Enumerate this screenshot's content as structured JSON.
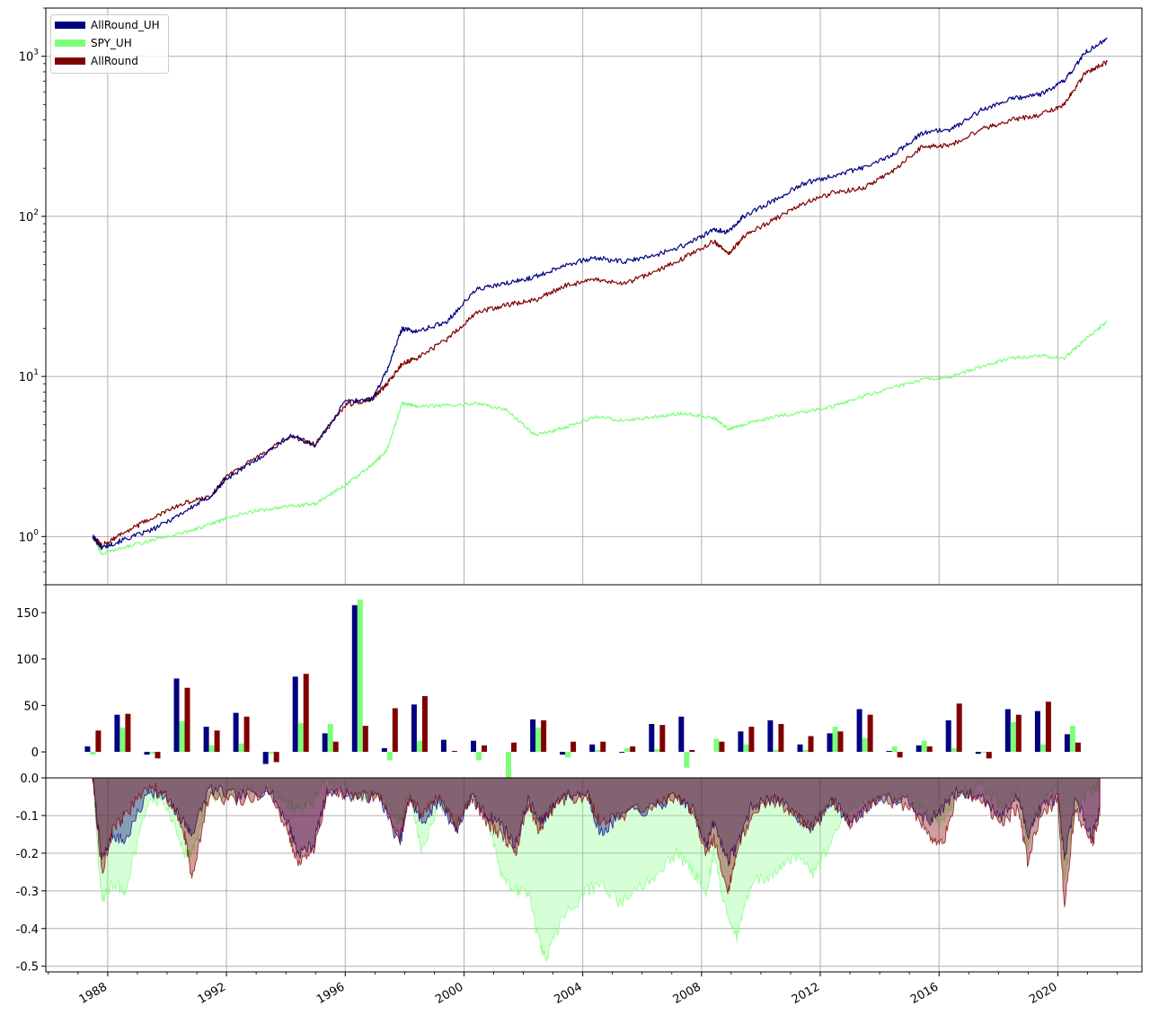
{
  "legend": {
    "items": [
      {
        "label": "AllRound_UH",
        "color": "#000080"
      },
      {
        "label": "SPY_UH",
        "color": "#7cff79"
      },
      {
        "label": "AllRound",
        "color": "#800000"
      }
    ]
  },
  "chart_data": [
    {
      "type": "line",
      "yscale": "log",
      "ylim": [
        0.5,
        2000
      ],
      "xlim": [
        "1985-12-01",
        "2022-11-01"
      ],
      "ytick_labels": [
        "10^0",
        "10^1",
        "10^2",
        "10^3"
      ],
      "x": [
        "1987-07-01",
        "1987-10-20",
        "1988-07-01",
        "1989-07-01",
        "1990-07-01",
        "1991-07-01",
        "1992-01-01",
        "1993-01-01",
        "1994-03-01",
        "1995-01-01",
        "1996-01-01",
        "1996-12-01",
        "1997-06-01",
        "1997-12-01",
        "1998-06-01",
        "1999-06-01",
        "2000-06-01",
        "2001-06-01",
        "2002-06-01",
        "2003-06-01",
        "2004-06-01",
        "2005-06-01",
        "2006-06-01",
        "2007-06-01",
        "2008-06-01",
        "2008-12-01",
        "2009-06-01",
        "2010-06-01",
        "2011-06-01",
        "2012-06-01",
        "2013-06-01",
        "2014-06-01",
        "2015-06-01",
        "2016-06-01",
        "2017-06-01",
        "2018-06-01",
        "2019-06-01",
        "2020-03-20",
        "2020-12-01",
        "2021-09-01"
      ],
      "series": [
        {
          "name": "AllRound_UH",
          "color": "#000080",
          "values": [
            1.0,
            0.85,
            0.95,
            1.1,
            1.4,
            1.8,
            2.3,
            3.0,
            4.3,
            3.7,
            7.0,
            7.2,
            11,
            20,
            19,
            22,
            35,
            38,
            42,
            50,
            55,
            52,
            57,
            66,
            82,
            80,
            100,
            125,
            160,
            180,
            200,
            240,
            330,
            350,
            460,
            540,
            580,
            700,
            1050,
            1300
          ]
        },
        {
          "name": "SPY_UH",
          "color": "#7cff79",
          "values": [
            1.0,
            0.78,
            0.85,
            0.95,
            1.05,
            1.2,
            1.3,
            1.45,
            1.55,
            1.6,
            2.1,
            2.8,
            3.5,
            6.8,
            6.5,
            6.6,
            6.8,
            6.2,
            4.3,
            4.8,
            5.6,
            5.3,
            5.6,
            5.9,
            5.5,
            4.7,
            5.0,
            5.6,
            6.0,
            6.5,
            7.5,
            8.5,
            9.5,
            10.0,
            11.5,
            13.0,
            13.5,
            13.0,
            17,
            22
          ]
        },
        {
          "name": "AllRound",
          "color": "#800000",
          "values": [
            1.0,
            0.88,
            1.05,
            1.3,
            1.6,
            1.8,
            2.4,
            3.1,
            4.2,
            3.8,
            6.6,
            7.3,
            9.0,
            12,
            13,
            17,
            25,
            28,
            30,
            37,
            40,
            38,
            45,
            55,
            70,
            58,
            75,
            95,
            120,
            140,
            150,
            190,
            270,
            280,
            350,
            400,
            430,
            500,
            780,
            920
          ]
        }
      ]
    },
    {
      "type": "bar",
      "ylim": [
        -28,
        180
      ],
      "yticks": [
        0,
        50,
        100,
        150
      ],
      "categories": [
        "1987",
        "1988",
        "1989",
        "1990",
        "1991",
        "1992",
        "1993",
        "1994",
        "1995",
        "1996",
        "1997",
        "1998",
        "1999",
        "2000",
        "2001",
        "2002",
        "2003",
        "2004",
        "2005",
        "2006",
        "2007",
        "2008",
        "2009",
        "2010",
        "2011",
        "2012",
        "2013",
        "2014",
        "2015",
        "2016",
        "2017",
        "2018",
        "2019",
        "2020",
        "2021",
        "2022"
      ],
      "series": [
        {
          "name": "AllRound_UH",
          "color": "#000080",
          "values": [
            6,
            40,
            -3,
            79,
            27,
            42,
            -13,
            81,
            20,
            158,
            4,
            51,
            13,
            12,
            0,
            35,
            -3,
            8,
            -1,
            30,
            38,
            0,
            22,
            34,
            8,
            20,
            46,
            1,
            7,
            34,
            -2,
            46,
            44,
            19,
            0,
            0
          ]
        },
        {
          "name": "SPY_UH",
          "color": "#7cff79",
          "values": [
            -3,
            26,
            -2,
            33,
            7,
            9,
            -2,
            31,
            30,
            164,
            -9,
            12,
            0,
            -9,
            -31,
            26,
            -6,
            2,
            4,
            3,
            -17,
            14,
            8,
            2,
            2,
            27,
            15,
            6,
            12,
            4,
            -1,
            32,
            8,
            28,
            0,
            0
          ]
        },
        {
          "name": "AllRound",
          "color": "#800000",
          "values": [
            23,
            41,
            -7,
            69,
            23,
            38,
            -11,
            84,
            11,
            28,
            47,
            60,
            1,
            7,
            10,
            34,
            11,
            11,
            6,
            29,
            2,
            11,
            27,
            30,
            17,
            22,
            40,
            -6,
            6,
            52,
            -7,
            40,
            54,
            10,
            0,
            0
          ]
        }
      ]
    },
    {
      "type": "area",
      "ylim": [
        -0.515,
        0.0
      ],
      "ytick_labels": [
        "0.0",
        "-0.1",
        "-0.2",
        "-0.3",
        "-0.4",
        "-0.5"
      ],
      "x": [
        "1987-07-01",
        "1987-10-20",
        "1988-03-01",
        "1988-08-01",
        "1989-06-01",
        "1990-01-01",
        "1990-08-01",
        "1990-11-01",
        "1991-06-01",
        "1992-06-01",
        "1993-06-01",
        "1994-02-01",
        "1994-06-01",
        "1994-12-01",
        "1995-06-01",
        "1996-06-01",
        "1997-03-01",
        "1997-11-01",
        "1998-03-01",
        "1998-08-01",
        "1999-03-01",
        "1999-10-01",
        "2000-04-01",
        "2000-10-01",
        "2001-04-01",
        "2001-09-20",
        "2002-03-01",
        "2002-07-20",
        "2002-10-09",
        "2003-04-01",
        "2004-03-01",
        "2004-08-01",
        "2005-04-01",
        "2006-06-01",
        "2007-03-01",
        "2007-10-01",
        "2008-03-01",
        "2008-06-01",
        "2008-11-20",
        "2009-03-09",
        "2009-09-01",
        "2010-06-01",
        "2011-03-01",
        "2011-10-01",
        "2012-06-01",
        "2013-01-01",
        "2014-01-01",
        "2015-01-01",
        "2015-08-25",
        "2016-02-11",
        "2016-08-01",
        "2017-06-01",
        "2018-02-09",
        "2018-09-01",
        "2018-12-24",
        "2019-06-01",
        "2020-01-01",
        "2020-03-23",
        "2020-08-01",
        "2021-03-01",
        "2021-06-01"
      ],
      "series": [
        {
          "name": "AllRound_UH",
          "color": "#000080",
          "values": [
            0,
            -0.22,
            -0.15,
            -0.17,
            -0.03,
            -0.06,
            -0.12,
            -0.15,
            -0.03,
            -0.05,
            -0.03,
            -0.12,
            -0.2,
            -0.18,
            -0.03,
            -0.05,
            -0.05,
            -0.18,
            -0.05,
            -0.12,
            -0.06,
            -0.14,
            -0.05,
            -0.1,
            -0.12,
            -0.18,
            -0.06,
            -0.12,
            -0.1,
            -0.05,
            -0.04,
            -0.15,
            -0.1,
            -0.08,
            -0.05,
            -0.09,
            -0.18,
            -0.12,
            -0.22,
            -0.18,
            -0.08,
            -0.05,
            -0.1,
            -0.13,
            -0.06,
            -0.12,
            -0.05,
            -0.06,
            -0.12,
            -0.08,
            -0.04,
            -0.05,
            -0.1,
            -0.05,
            -0.15,
            -0.08,
            -0.05,
            -0.22,
            -0.06,
            -0.15,
            -0.08
          ]
        },
        {
          "name": "SPY_UH",
          "color": "#7cff79",
          "values": [
            0,
            -0.33,
            -0.28,
            -0.3,
            -0.05,
            -0.08,
            -0.2,
            -0.2,
            -0.05,
            -0.04,
            -0.02,
            -0.07,
            -0.08,
            -0.06,
            0,
            -0.05,
            -0.04,
            -0.12,
            -0.04,
            -0.2,
            -0.06,
            -0.12,
            -0.05,
            -0.1,
            -0.25,
            -0.3,
            -0.3,
            -0.44,
            -0.48,
            -0.38,
            -0.3,
            -0.28,
            -0.33,
            -0.26,
            -0.2,
            -0.25,
            -0.3,
            -0.2,
            -0.38,
            -0.42,
            -0.28,
            -0.26,
            -0.2,
            -0.25,
            -0.17,
            -0.08,
            -0.05,
            -0.05,
            -0.1,
            -0.12,
            -0.04,
            -0.02,
            -0.08,
            -0.03,
            -0.18,
            -0.05,
            -0.03,
            -0.27,
            -0.08,
            -0.03,
            -0.02
          ]
        },
        {
          "name": "AllRound",
          "color": "#800000",
          "values": [
            0,
            -0.25,
            -0.14,
            -0.1,
            -0.02,
            -0.05,
            -0.15,
            -0.26,
            -0.05,
            -0.06,
            -0.04,
            -0.15,
            -0.22,
            -0.2,
            -0.04,
            -0.05,
            -0.05,
            -0.16,
            -0.05,
            -0.1,
            -0.05,
            -0.13,
            -0.05,
            -0.12,
            -0.15,
            -0.2,
            -0.08,
            -0.14,
            -0.1,
            -0.06,
            -0.05,
            -0.12,
            -0.1,
            -0.07,
            -0.05,
            -0.1,
            -0.2,
            -0.16,
            -0.3,
            -0.2,
            -0.1,
            -0.06,
            -0.1,
            -0.14,
            -0.06,
            -0.12,
            -0.05,
            -0.08,
            -0.15,
            -0.18,
            -0.05,
            -0.06,
            -0.12,
            -0.08,
            -0.22,
            -0.1,
            -0.06,
            -0.34,
            -0.08,
            -0.18,
            -0.1
          ]
        }
      ]
    }
  ],
  "x_tick_labels": [
    "1988",
    "1992",
    "1996",
    "2000",
    "2004",
    "2008",
    "2012",
    "2016",
    "2020"
  ]
}
